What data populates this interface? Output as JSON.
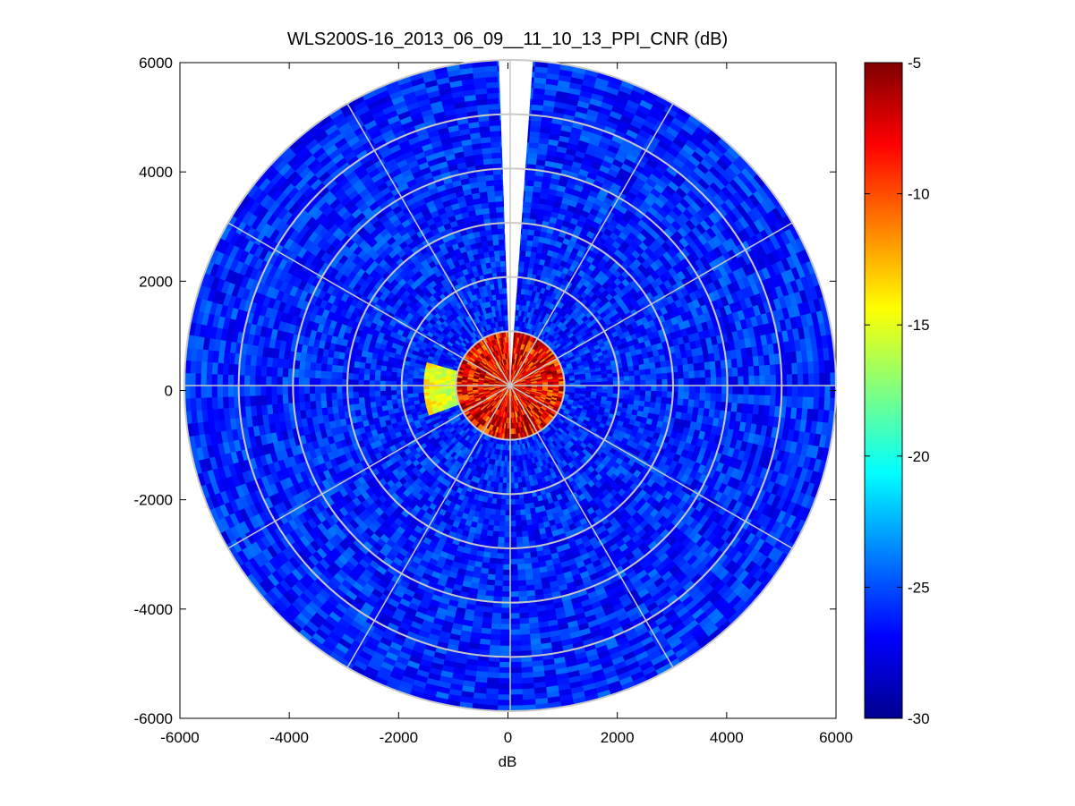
{
  "chart_data": {
    "type": "heatmap",
    "subtype": "polar-ppi",
    "title": "WLS200S-16_2013_06_09__11_10_13_PPI_CNR (dB)",
    "xlabel": "dB",
    "ylabel": "",
    "xlim": [
      -6000,
      6000
    ],
    "ylim": [
      -6000,
      6000
    ],
    "xticks": [
      "-6000",
      "-4000",
      "-2000",
      "0",
      "2000",
      "4000",
      "6000"
    ],
    "yticks": [
      "6000",
      "4000",
      "2000",
      "0",
      "-2000",
      "-4000",
      "-6000"
    ],
    "max_range": 6000,
    "range_rings": [
      1000,
      2000,
      3000,
      4000,
      5000,
      6000
    ],
    "spoke_angles_deg": [
      0,
      30,
      60,
      90,
      120,
      150,
      180,
      210,
      240,
      270,
      300,
      330
    ],
    "gap_azimuth_deg": [
      -2,
      4
    ],
    "colormap": "jet",
    "colorbar": {
      "label_ticks": [
        "-5",
        "-10",
        "-15",
        "-20",
        "-25",
        "-30"
      ],
      "range": [
        -30,
        -5
      ]
    },
    "features": [
      {
        "name": "near-field high CNR",
        "range_max": 1000,
        "cnr_db": -8
      },
      {
        "name": "westward aerosol plume",
        "azimuth_deg": [
          250,
          285
        ],
        "range_max": 1600,
        "cnr_db": -16
      },
      {
        "name": "background",
        "cnr_db": -26
      }
    ],
    "grid": true
  }
}
